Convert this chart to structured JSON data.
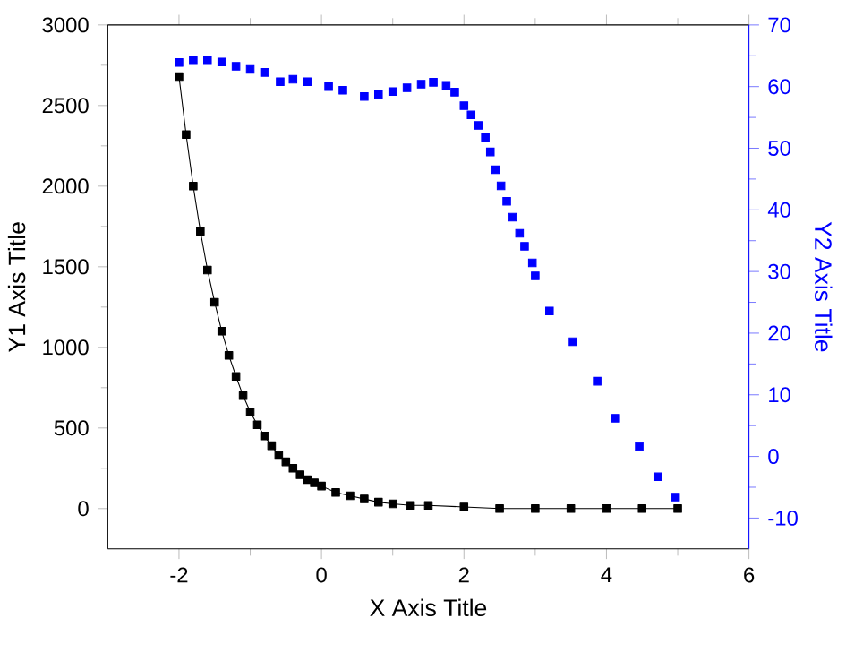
{
  "chart_data": {
    "type": "line",
    "xlabel": "X Axis Title",
    "ylabel": "Y1 Axis Title",
    "y2label": "Y2 Axis Title",
    "xlim": [
      -3,
      6
    ],
    "xticks": [
      -2,
      0,
      2,
      4,
      6
    ],
    "ylim": [
      -250,
      3000
    ],
    "yticks": [
      0,
      500,
      1000,
      1500,
      2000,
      2500,
      3000
    ],
    "y2lim": [
      -15,
      70
    ],
    "y2ticks": [
      -10,
      0,
      10,
      20,
      30,
      40,
      50,
      60,
      70
    ],
    "marker": "square",
    "series": [
      {
        "color": "#000000",
        "x": [
          -2,
          -1.9,
          -1.8,
          -1.7,
          -1.6,
          -1.5,
          -1.4,
          -1.3,
          -1.2,
          -1.1,
          -1.0,
          -0.9,
          -0.8,
          -0.7,
          -0.6,
          -0.5,
          -0.4,
          -0.3,
          -0.2,
          -0.1,
          0,
          0.2,
          0.4,
          0.6,
          0.8,
          1.0,
          1.25,
          1.5,
          2,
          2.5,
          3,
          3.5,
          4,
          4.5,
          5
        ],
        "values": [
          2680,
          2320,
          2000,
          1720,
          1480,
          1280,
          1100,
          950,
          820,
          700,
          600,
          520,
          450,
          390,
          330,
          290,
          250,
          210,
          180,
          160,
          140,
          100,
          80,
          60,
          40,
          30,
          20,
          20,
          10,
          0,
          0,
          0,
          0,
          0,
          0
        ]
      },
      {
        "type": "scatter",
        "axis": "y2",
        "color": "#0000ff",
        "x": [
          -2,
          -1.8,
          -1.6,
          -1.4,
          -1.2,
          -1.0,
          -0.8,
          -0.58,
          -0.4,
          -0.2,
          0.1,
          0.3,
          0.6,
          0.8,
          1.0,
          1.2,
          1.4,
          1.57,
          1.75,
          1.87,
          2.0,
          2.1,
          2.2,
          2.3,
          2.37,
          2.44,
          2.52,
          2.6,
          2.68,
          2.78,
          2.85,
          2.96,
          3.0,
          3.2,
          3.53,
          3.87,
          4.13,
          4.46,
          4.72,
          4.97
        ],
        "values": [
          63.9,
          64.2,
          64.2,
          64.0,
          63.3,
          62.8,
          62.3,
          60.8,
          61.2,
          60.8,
          60.0,
          59.4,
          58.4,
          58.7,
          59.2,
          59.8,
          60.4,
          60.7,
          60.2,
          59.1,
          56.9,
          55.4,
          53.7,
          51.8,
          49.4,
          46.5,
          43.9,
          41.4,
          38.8,
          36.2,
          34.1,
          31.4,
          29.3,
          23.6,
          18.6,
          12.2,
          6.2,
          1.6,
          -3.3,
          -6.6
        ]
      }
    ]
  }
}
